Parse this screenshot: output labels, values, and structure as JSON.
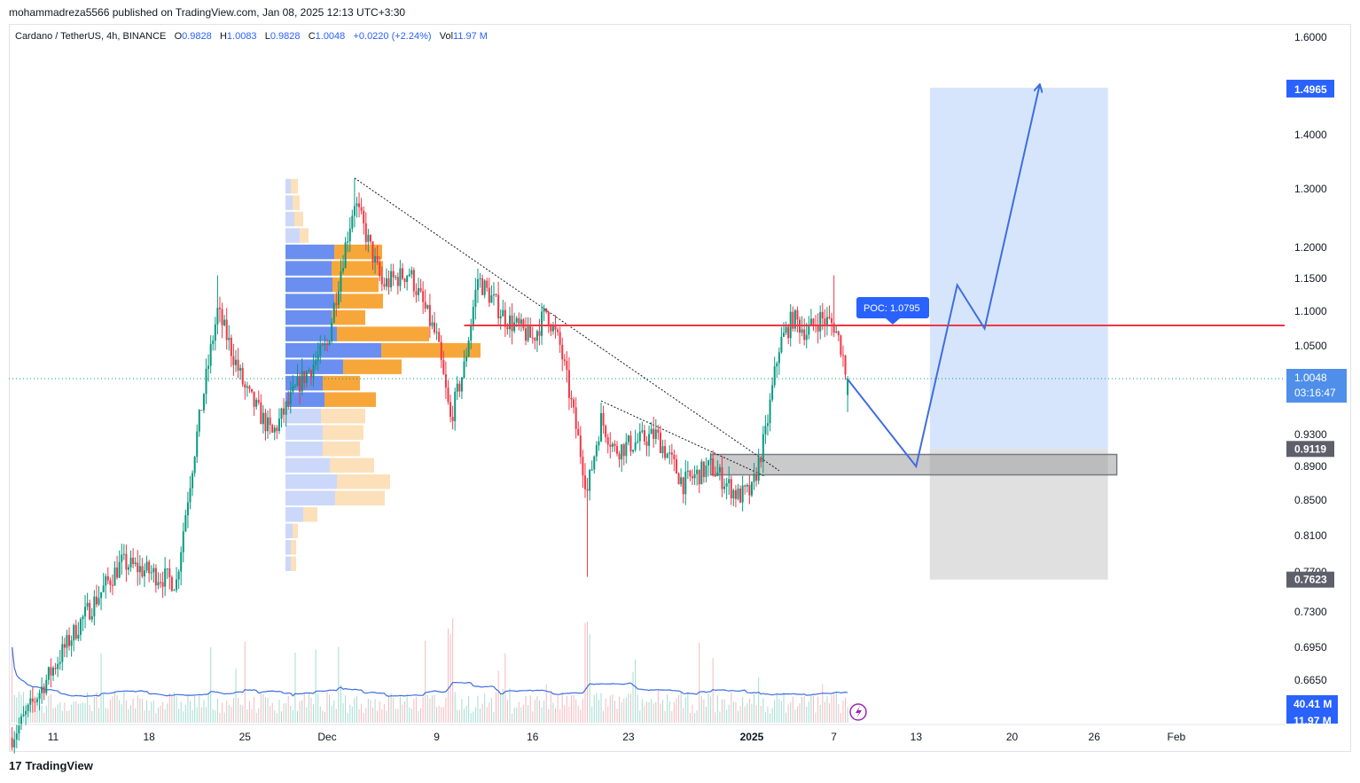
{
  "header": {
    "publisher_line": "mohammadreza5566 published on TradingView.com, Jan 08, 2025 12:13 UTC+3:30"
  },
  "legend": {
    "symbol": "Cardano / TetherUS, 4h, BINANCE",
    "o_label": "O",
    "o_value": "0.9828",
    "h_label": "H",
    "h_value": "1.0083",
    "l_label": "L",
    "l_value": "0.9828",
    "c_label": "C",
    "c_value": "1.0048",
    "change": "+0.0220 (+2.24%)",
    "vol_label": "Vol",
    "vol_value": "11.97 M"
  },
  "footer": {
    "brand": "TradingView",
    "logo": "17"
  },
  "colors": {
    "up": "#089981",
    "down": "#f23645",
    "accent": "#2962ff",
    "poc_line": "#f23645",
    "volume_ma": "#3e6ee0",
    "target_zone": "#cfe0fb",
    "stop_zone": "#dedede",
    "vp_up": "#6a8ff0",
    "vp_down": "#f7a73a"
  },
  "chart_data": {
    "type": "candlestick",
    "symbol": "Cardano / TetherUS",
    "timeframe": "4h",
    "exchange": "BINANCE",
    "x_ticks": [
      "11",
      "18",
      "25",
      "Dec",
      "9",
      "16",
      "23",
      "2025",
      "7",
      "13",
      "20",
      "26",
      "Feb"
    ],
    "y_ticks": [
      "1.6000",
      "1.4000",
      "1.3000",
      "1.2000",
      "1.1500",
      "1.1000",
      "1.0500",
      "0.9300",
      "0.8900",
      "0.8500",
      "0.8100",
      "0.7700",
      "0.7300",
      "0.6950",
      "0.6650"
    ],
    "ylim": [
      0.64,
      1.62
    ],
    "price_labels": [
      {
        "label": "1.4965",
        "kind": "target"
      },
      {
        "label": "1.0048",
        "kind": "last"
      },
      {
        "label": "03:16:47",
        "kind": "countdown"
      },
      {
        "label": "0.9119",
        "kind": "entry"
      },
      {
        "label": "0.7623",
        "kind": "stop"
      }
    ],
    "volume_labels": [
      "40.41 M",
      "11.97 M"
    ],
    "poc": {
      "label": "POC: 1.0795",
      "value": 1.0795
    },
    "last_price": 1.0048,
    "trade_setup": {
      "target": 1.4965,
      "entry": 0.9119,
      "stop": 0.7623
    },
    "support_zone": [
      0.88,
      0.905
    ],
    "projected_path": [
      {
        "date": "Jan 08",
        "price": 1.004
      },
      {
        "date": "Jan 13",
        "price": 0.89
      },
      {
        "date": "Jan 16",
        "price": 1.14
      },
      {
        "date": "Jan 18",
        "price": 1.075
      },
      {
        "date": "Jan 22",
        "price": 1.5
      }
    ],
    "trendlines": [
      {
        "from": {
          "date": "Dec 03",
          "price": 1.32
        },
        "to": {
          "date": "Jan 03",
          "price": 0.885
        }
      },
      {
        "from": {
          "date": "Dec 21",
          "price": 0.975
        },
        "to": {
          "date": "Jan 02",
          "price": 0.878
        }
      }
    ],
    "price_waypoints": [
      {
        "date": "Nov 08",
        "price": 0.61
      },
      {
        "date": "Nov 13",
        "price": 0.72
      },
      {
        "date": "Nov 16",
        "price": 0.78
      },
      {
        "date": "Nov 20",
        "price": 0.76
      },
      {
        "date": "Nov 23",
        "price": 1.1
      },
      {
        "date": "Nov 25",
        "price": 0.99
      },
      {
        "date": "Nov 27",
        "price": 0.93
      },
      {
        "date": "Nov 29",
        "price": 1.0
      },
      {
        "date": "Dec 01",
        "price": 1.05
      },
      {
        "date": "Dec 03",
        "price": 1.28
      },
      {
        "date": "Dec 05",
        "price": 1.14
      },
      {
        "date": "Dec 07",
        "price": 1.16
      },
      {
        "date": "Dec 09",
        "price": 1.06
      },
      {
        "date": "Dec 10",
        "price": 0.95
      },
      {
        "date": "Dec 11",
        "price": 1.02
      },
      {
        "date": "Dec 12",
        "price": 1.15
      },
      {
        "date": "Dec 14",
        "price": 1.09
      },
      {
        "date": "Dec 16",
        "price": 1.06
      },
      {
        "date": "Dec 17",
        "price": 1.1
      },
      {
        "date": "Dec 18",
        "price": 1.05
      },
      {
        "date": "Dec 20",
        "price": 0.86
      },
      {
        "date": "Dec 21",
        "price": 0.95
      },
      {
        "date": "Dec 22",
        "price": 0.91
      },
      {
        "date": "Dec 25",
        "price": 0.93
      },
      {
        "date": "Dec 27",
        "price": 0.87
      },
      {
        "date": "Dec 29",
        "price": 0.89
      },
      {
        "date": "Dec 31",
        "price": 0.855
      },
      {
        "date": "Jan 01",
        "price": 0.86
      },
      {
        "date": "Jan 02",
        "price": 0.93
      },
      {
        "date": "Jan 03",
        "price": 1.05
      },
      {
        "date": "Jan 04",
        "price": 1.09
      },
      {
        "date": "Jan 05",
        "price": 1.07
      },
      {
        "date": "Jan 06",
        "price": 1.09
      },
      {
        "date": "Jan 07",
        "price": 1.08
      },
      {
        "date": "Jan 07 12:00",
        "price": 1.05
      },
      {
        "date": "Jan 08",
        "price": 1.004
      }
    ],
    "volume_profile": {
      "top_price": 1.32,
      "bottom_price": 0.77,
      "bins": [
        {
          "up": 6,
          "down": 8,
          "value_area": false
        },
        {
          "up": 8,
          "down": 8,
          "value_area": false
        },
        {
          "up": 10,
          "down": 10,
          "value_area": false
        },
        {
          "up": 16,
          "down": 10,
          "value_area": false
        },
        {
          "up": 55,
          "down": 54,
          "value_area": true
        },
        {
          "up": 52,
          "down": 58,
          "value_area": true
        },
        {
          "up": 53,
          "down": 52,
          "value_area": true
        },
        {
          "up": 55,
          "down": 55,
          "value_area": true
        },
        {
          "up": 52,
          "down": 38,
          "value_area": true
        },
        {
          "up": 58,
          "down": 104,
          "value_area": true
        },
        {
          "up": 108,
          "down": 112,
          "value_area": true
        },
        {
          "up": 65,
          "down": 66,
          "value_area": true
        },
        {
          "up": 42,
          "down": 42,
          "value_area": true
        },
        {
          "up": 44,
          "down": 58,
          "value_area": true
        },
        {
          "up": 40,
          "down": 50,
          "value_area": false
        },
        {
          "up": 42,
          "down": 46,
          "value_area": false
        },
        {
          "up": 42,
          "down": 42,
          "value_area": false
        },
        {
          "up": 50,
          "down": 50,
          "value_area": false
        },
        {
          "up": 58,
          "down": 60,
          "value_area": false
        },
        {
          "up": 56,
          "down": 56,
          "value_area": false
        },
        {
          "up": 20,
          "down": 16,
          "value_area": false
        },
        {
          "up": 8,
          "down": 6,
          "value_area": false
        },
        {
          "up": 6,
          "down": 6,
          "value_area": false
        },
        {
          "up": 6,
          "down": 6,
          "value_area": false
        }
      ]
    },
    "grid": false
  }
}
